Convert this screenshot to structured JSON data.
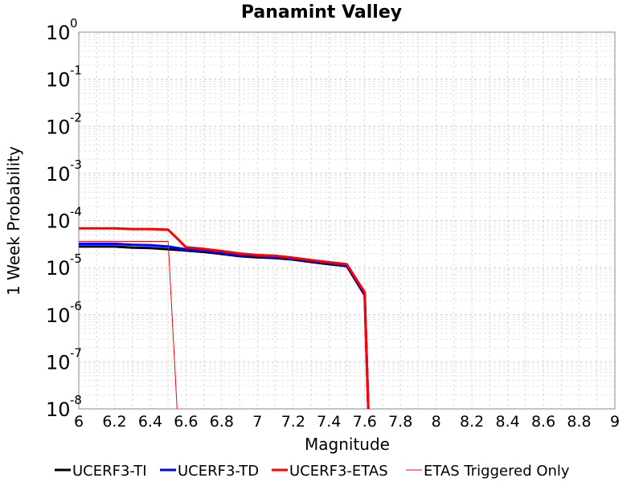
{
  "chart_data": {
    "type": "line",
    "title": "Panamint Valley",
    "xlabel": "Magnitude",
    "ylabel": "1 Week Probability",
    "xlim": [
      6,
      9
    ],
    "ylim": [
      1e-08,
      1
    ],
    "yscale": "log",
    "grid": true,
    "legend_position": "bottom",
    "x_ticks": [
      "6",
      "6.2",
      "6.4",
      "6.6",
      "6.8",
      "7",
      "7.2",
      "7.4",
      "7.6",
      "7.8",
      "8",
      "8.2",
      "8.4",
      "8.6",
      "8.8",
      "9"
    ],
    "y_ticks": [
      {
        "base": "10",
        "exp": "0"
      },
      {
        "base": "10",
        "exp": "-1"
      },
      {
        "base": "10",
        "exp": "-2"
      },
      {
        "base": "10",
        "exp": "-3"
      },
      {
        "base": "10",
        "exp": "-4"
      },
      {
        "base": "10",
        "exp": "-5"
      },
      {
        "base": "10",
        "exp": "-6"
      },
      {
        "base": "10",
        "exp": "-7"
      },
      {
        "base": "10",
        "exp": "-8"
      }
    ],
    "series": [
      {
        "name": "UCERF3-TI",
        "color": "#000000",
        "x": [
          6.0,
          6.1,
          6.2,
          6.3,
          6.4,
          6.5,
          6.6,
          6.7,
          6.8,
          6.9,
          7.0,
          7.1,
          7.2,
          7.3,
          7.4,
          7.5,
          7.6,
          7.62
        ],
        "y": [
          2.8e-05,
          2.8e-05,
          2.8e-05,
          2.65e-05,
          2.6e-05,
          2.45e-05,
          2.3e-05,
          2.15e-05,
          1.95e-05,
          1.75e-05,
          1.65e-05,
          1.6e-05,
          1.48e-05,
          1.32e-05,
          1.18e-05,
          1.08e-05,
          2.6e-06,
          1e-08
        ]
      },
      {
        "name": "UCERF3-TD",
        "color": "#0000ff",
        "x": [
          6.0,
          6.1,
          6.2,
          6.3,
          6.4,
          6.5,
          6.6,
          6.7,
          6.8,
          6.9,
          7.0,
          7.1,
          7.2,
          7.3,
          7.4,
          7.5,
          7.6,
          7.62
        ],
        "y": [
          3.2e-05,
          3.2e-05,
          3.2e-05,
          3.05e-05,
          3e-05,
          2.8e-05,
          2.45e-05,
          2.3e-05,
          2.05e-05,
          1.85e-05,
          1.75e-05,
          1.68e-05,
          1.55e-05,
          1.38e-05,
          1.25e-05,
          1.12e-05,
          2.8e-06,
          1e-08
        ]
      },
      {
        "name": "UCERF3-ETAS",
        "color": "#ff0000",
        "x": [
          6.0,
          6.1,
          6.2,
          6.3,
          6.4,
          6.5,
          6.55,
          6.6,
          6.7,
          6.8,
          6.9,
          7.0,
          7.1,
          7.2,
          7.3,
          7.4,
          7.5,
          7.6,
          7.62
        ],
        "y": [
          6.8e-05,
          6.8e-05,
          6.8e-05,
          6.6e-05,
          6.6e-05,
          6.4e-05,
          4.2e-05,
          2.7e-05,
          2.5e-05,
          2.25e-05,
          2e-05,
          1.85e-05,
          1.78e-05,
          1.62e-05,
          1.45e-05,
          1.3e-05,
          1.18e-05,
          3e-06,
          1e-08
        ]
      },
      {
        "name": "ETAS Triggered Only",
        "color": "#ff0000",
        "x": [
          6.0,
          6.1,
          6.2,
          6.3,
          6.4,
          6.5,
          6.55
        ],
        "y": [
          3.6e-05,
          3.6e-05,
          3.6e-05,
          3.6e-05,
          3.6e-05,
          3.6e-05,
          1e-08
        ]
      }
    ]
  }
}
